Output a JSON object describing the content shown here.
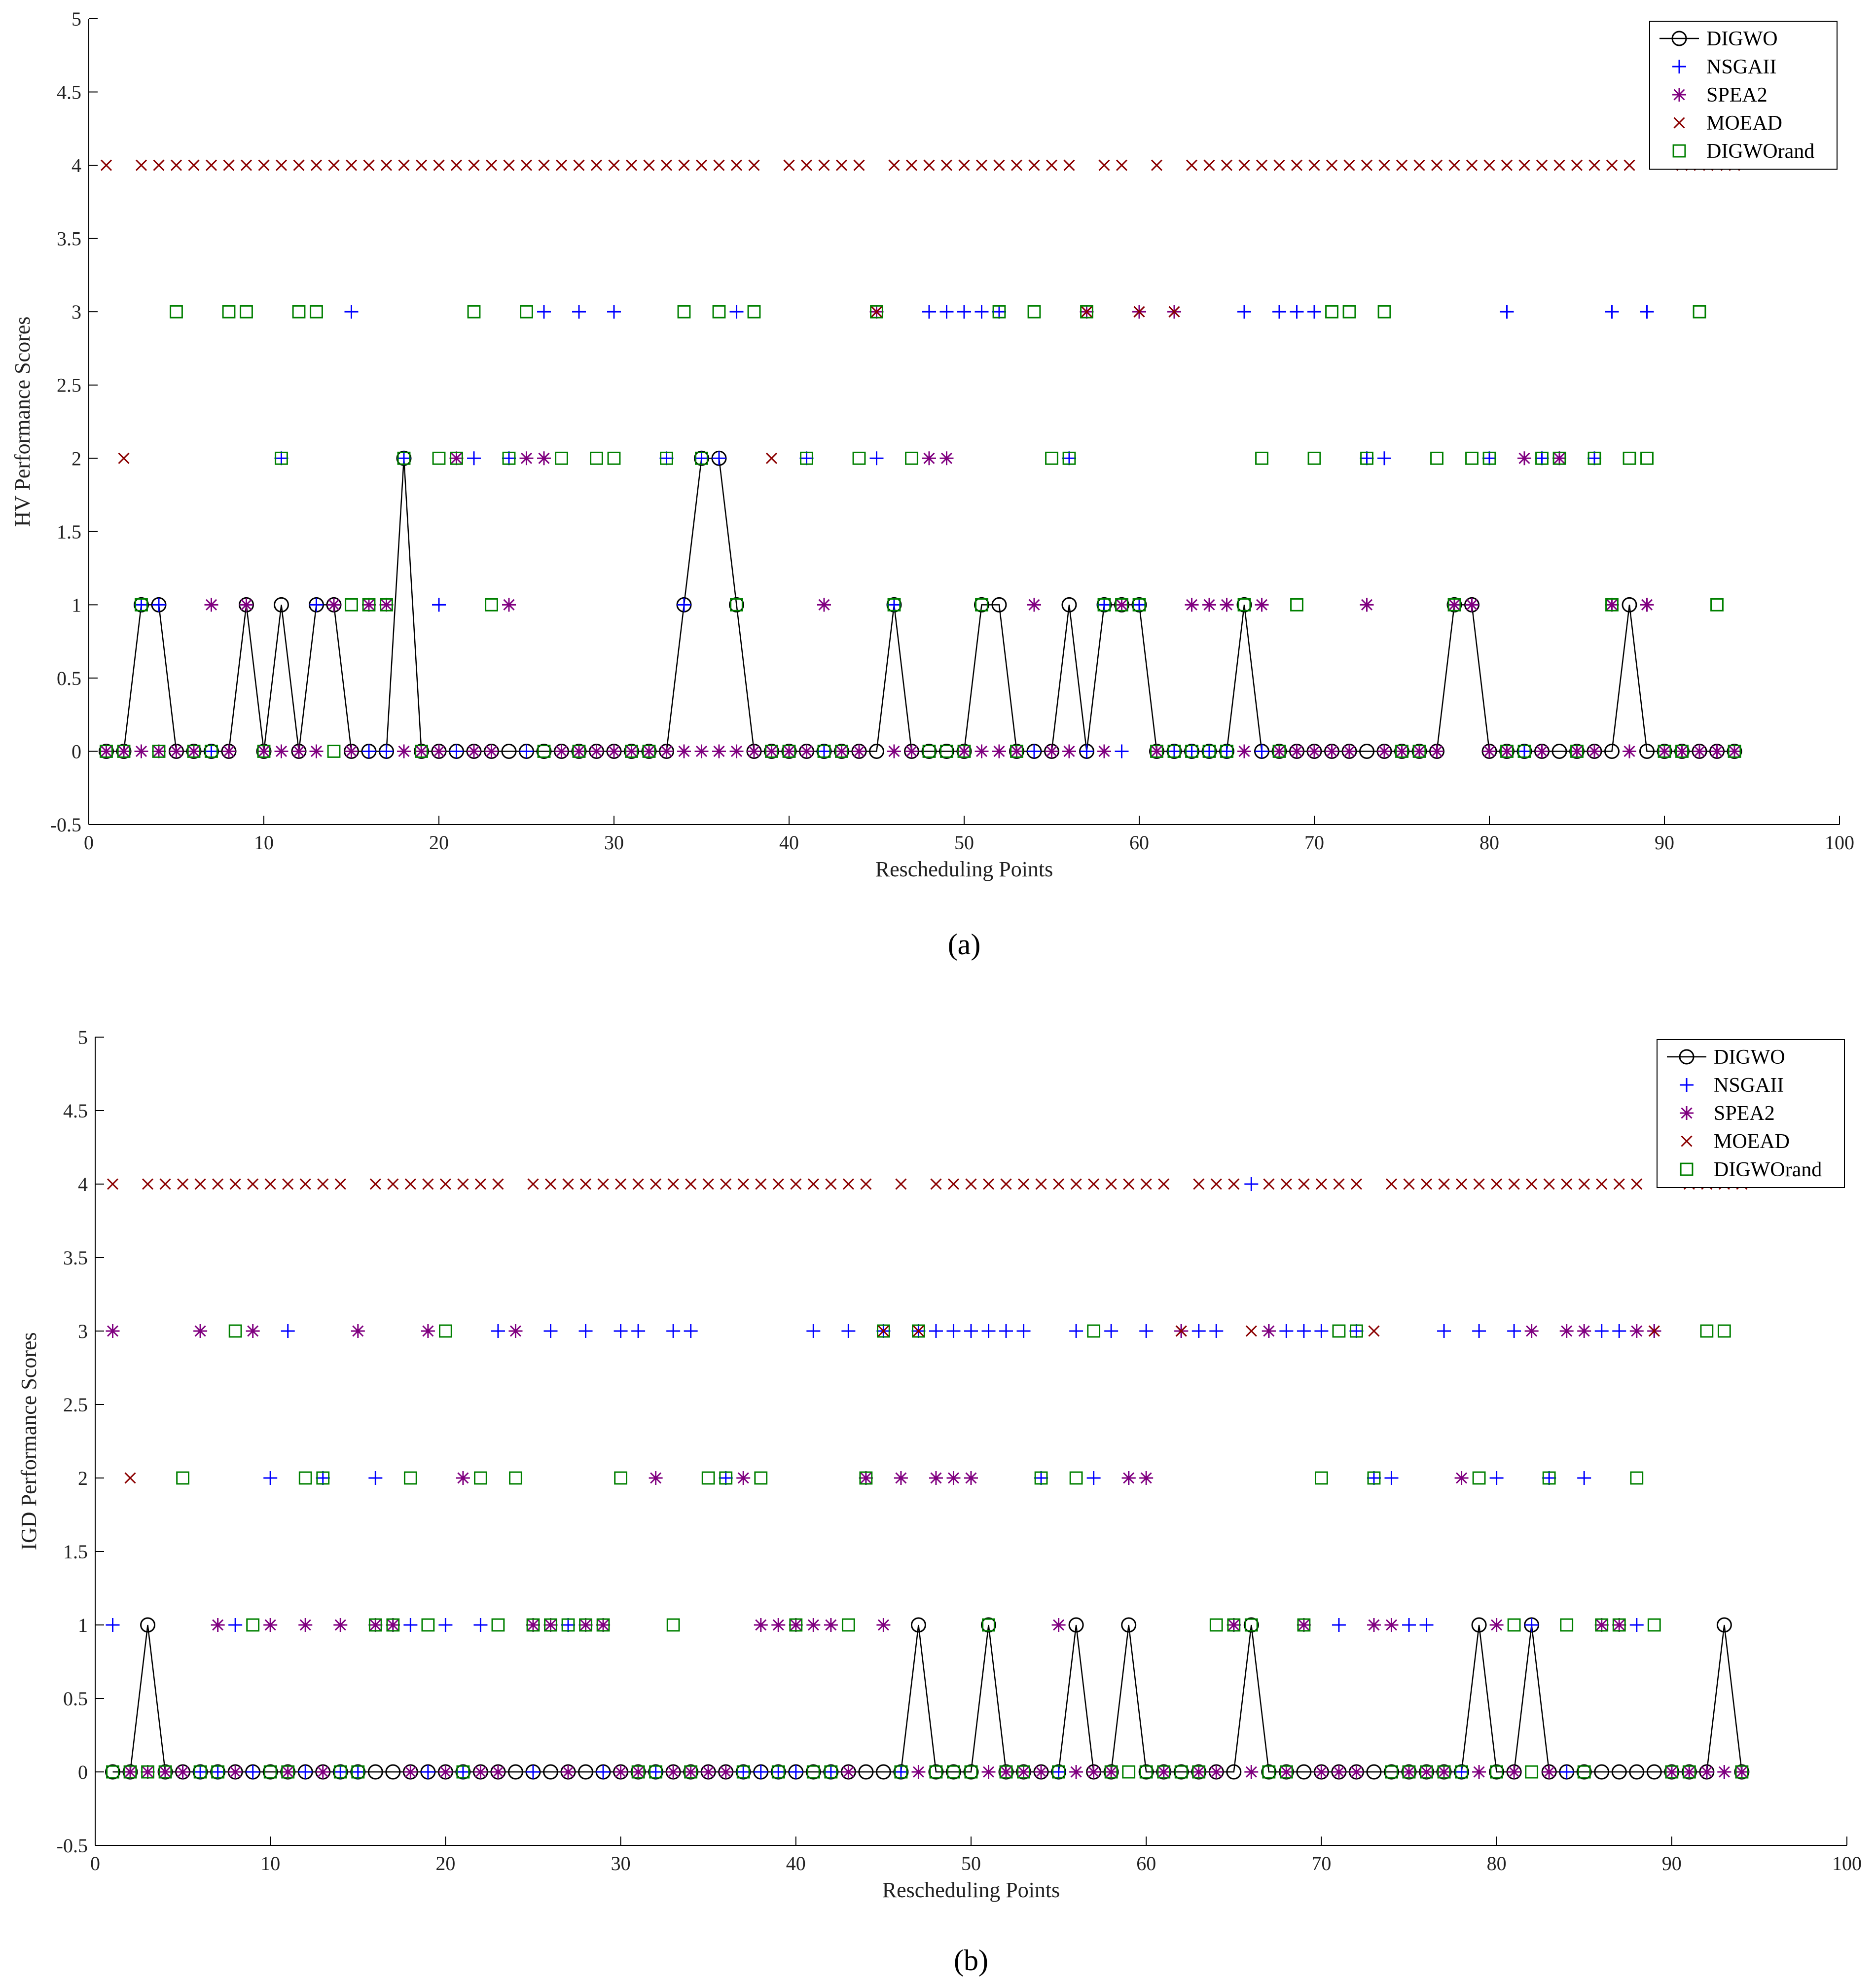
{
  "chart_data": [
    {
      "type": "line",
      "panel_label": "(a)",
      "ylabel": "HV Performance Scores",
      "xlabel": "Rescheduling Points",
      "xlim": [
        0,
        100
      ],
      "ylim": [
        -0.5,
        5
      ],
      "xticks": [
        0,
        10,
        20,
        30,
        40,
        50,
        60,
        70,
        80,
        90,
        100
      ],
      "yticks": [
        -0.5,
        0,
        0.5,
        1,
        1.5,
        2,
        2.5,
        3,
        3.5,
        4,
        4.5,
        5
      ],
      "legend": [
        "DIGWO",
        "NSGAII",
        "SPEA2",
        "MOEAD",
        "DIGWOrand"
      ],
      "legend_position": "top-right",
      "series": [
        {
          "name": "DIGWO",
          "marker": "circle",
          "color": "#000000",
          "line": true,
          "values": [
            0,
            0,
            1,
            1,
            0,
            0,
            0,
            0,
            1,
            0,
            1,
            0,
            1,
            1,
            0,
            0,
            0,
            2,
            0,
            0,
            0,
            0,
            0,
            0,
            0,
            0,
            0,
            0,
            0,
            0,
            0,
            0,
            0,
            1,
            2,
            2,
            1,
            0,
            0,
            0,
            0,
            0,
            0,
            0,
            0,
            1,
            0,
            0,
            0,
            0,
            1,
            1,
            0,
            0,
            0,
            1,
            0,
            1,
            1,
            1,
            0,
            0,
            0,
            0,
            0,
            1,
            0,
            0,
            0,
            0,
            0,
            0,
            0,
            0,
            0,
            0,
            0,
            1,
            1,
            0,
            0,
            0,
            0,
            0,
            0,
            0,
            0,
            1,
            0,
            0,
            0,
            0,
            0,
            0
          ]
        },
        {
          "name": "NSGAII",
          "marker": "plus",
          "color": "#0000ff",
          "line": false,
          "values": [
            0,
            0,
            1,
            1,
            0,
            0,
            0,
            0,
            1,
            0,
            2,
            0,
            1,
            1,
            3,
            0,
            0,
            2,
            0,
            1,
            0,
            2,
            0,
            2,
            0,
            3,
            0,
            3,
            0,
            3,
            0,
            0,
            2,
            1,
            2,
            2,
            3,
            0,
            0,
            0,
            2,
            0,
            0,
            0,
            2,
            1,
            0,
            3,
            3,
            3,
            3,
            3,
            0,
            0,
            0,
            2,
            0,
            1,
            0,
            1,
            0,
            0,
            0,
            0,
            0,
            3,
            0,
            3,
            3,
            3,
            0,
            0,
            2,
            2,
            0,
            0,
            0,
            1,
            1,
            2,
            3,
            0,
            2,
            2,
            0,
            2,
            3,
            0,
            3,
            0,
            0,
            0,
            0,
            0
          ]
        },
        {
          "name": "SPEA2",
          "marker": "star",
          "color": "#800080",
          "line": false,
          "values": [
            0,
            0,
            0,
            0,
            0,
            0,
            1,
            0,
            1,
            0,
            0,
            0,
            0,
            1,
            0,
            1,
            1,
            0,
            0,
            0,
            2,
            0,
            0,
            1,
            2,
            2,
            0,
            0,
            0,
            0,
            0,
            0,
            0,
            0,
            0,
            0,
            0,
            0,
            0,
            0,
            0,
            1,
            0,
            0,
            3,
            0,
            0,
            2,
            2,
            0,
            0,
            0,
            0,
            1,
            0,
            0,
            3,
            0,
            1,
            3,
            0,
            3,
            1,
            1,
            1,
            0,
            1,
            0,
            0,
            0,
            0,
            0,
            1,
            0,
            0,
            0,
            0,
            1,
            1,
            0,
            0,
            2,
            0,
            2,
            0,
            0,
            1,
            0,
            1,
            0,
            0,
            0,
            0,
            0
          ]
        },
        {
          "name": "MOEAD",
          "marker": "x",
          "color": "#8b0000",
          "line": false,
          "values": [
            4,
            2,
            4,
            4,
            4,
            4,
            4,
            4,
            4,
            4,
            4,
            4,
            4,
            4,
            4,
            4,
            4,
            4,
            4,
            4,
            4,
            4,
            4,
            4,
            4,
            4,
            4,
            4,
            4,
            4,
            4,
            4,
            4,
            4,
            4,
            4,
            4,
            4,
            2,
            4,
            4,
            4,
            4,
            4,
            3,
            4,
            4,
            4,
            4,
            4,
            4,
            4,
            4,
            4,
            4,
            4,
            3,
            4,
            4,
            3,
            4,
            3,
            4,
            4,
            4,
            4,
            4,
            4,
            4,
            4,
            4,
            4,
            4,
            4,
            4,
            4,
            4,
            4,
            4,
            4,
            4,
            4,
            4,
            4,
            4,
            4,
            4,
            4,
            null,
            null,
            4,
            4,
            4,
            4
          ]
        },
        {
          "name": "DIGWOrand",
          "marker": "square",
          "color": "#008000",
          "line": false,
          "values": [
            0,
            0,
            1,
            0,
            3,
            0,
            0,
            3,
            3,
            0,
            2,
            3,
            3,
            0,
            1,
            1,
            1,
            2,
            0,
            2,
            2,
            3,
            1,
            2,
            3,
            0,
            2,
            0,
            2,
            2,
            0,
            0,
            2,
            3,
            2,
            3,
            1,
            3,
            0,
            0,
            2,
            0,
            0,
            2,
            3,
            1,
            2,
            0,
            0,
            0,
            1,
            3,
            0,
            3,
            2,
            2,
            3,
            1,
            1,
            1,
            0,
            0,
            0,
            0,
            0,
            1,
            2,
            0,
            1,
            2,
            3,
            3,
            2,
            3,
            0,
            0,
            2,
            1,
            2,
            2,
            0,
            0,
            2,
            2,
            0,
            2,
            1,
            2,
            2,
            0,
            0,
            3,
            1,
            0
          ]
        }
      ]
    },
    {
      "type": "line",
      "panel_label": "(b)",
      "ylabel": "IGD Performance Scores",
      "xlabel": "Rescheduling Points",
      "xlim": [
        0,
        100
      ],
      "ylim": [
        -0.5,
        5
      ],
      "xticks": [
        0,
        10,
        20,
        30,
        40,
        50,
        60,
        70,
        80,
        90,
        100
      ],
      "yticks": [
        -0.5,
        0,
        0.5,
        1,
        1.5,
        2,
        2.5,
        3,
        3.5,
        4,
        4.5,
        5
      ],
      "legend": [
        "DIGWO",
        "NSGAII",
        "SPEA2",
        "MOEAD",
        "DIGWOrand"
      ],
      "legend_position": "top-right",
      "series": [
        {
          "name": "DIGWO",
          "marker": "circle",
          "color": "#000000",
          "line": true,
          "values": [
            0,
            0,
            1,
            0,
            0,
            0,
            0,
            0,
            0,
            0,
            0,
            0,
            0,
            0,
            0,
            0,
            0,
            0,
            0,
            0,
            0,
            0,
            0,
            0,
            0,
            0,
            0,
            0,
            0,
            0,
            0,
            0,
            0,
            0,
            0,
            0,
            0,
            0,
            0,
            0,
            0,
            0,
            0,
            0,
            0,
            0,
            1,
            0,
            0,
            0,
            1,
            0,
            0,
            0,
            0,
            1,
            0,
            0,
            1,
            0,
            0,
            0,
            0,
            0,
            0,
            1,
            0,
            0,
            0,
            0,
            0,
            0,
            0,
            0,
            0,
            0,
            0,
            0,
            1,
            0,
            0,
            1,
            0,
            0,
            0,
            0,
            0,
            0,
            0,
            0,
            0,
            0,
            1,
            0
          ]
        },
        {
          "name": "NSGAII",
          "marker": "plus",
          "color": "#0000ff",
          "line": false,
          "values": [
            1,
            0,
            0,
            0,
            0,
            0,
            0,
            1,
            0,
            2,
            3,
            0,
            2,
            0,
            0,
            2,
            1,
            1,
            0,
            1,
            0,
            1,
            3,
            3,
            0,
            3,
            1,
            3,
            0,
            3,
            3,
            0,
            3,
            3,
            0,
            2,
            0,
            0,
            0,
            0,
            3,
            0,
            3,
            2,
            3,
            0,
            3,
            3,
            3,
            3,
            3,
            3,
            3,
            2,
            0,
            3,
            2,
            3,
            2,
            3,
            0,
            3,
            3,
            3,
            1,
            4,
            3,
            3,
            3,
            3,
            1,
            3,
            2,
            2,
            1,
            1,
            3,
            0,
            3,
            2,
            3,
            1,
            2,
            0,
            2,
            3,
            3,
            1,
            3,
            0,
            0,
            0,
            0,
            0
          ]
        },
        {
          "name": "SPEA2",
          "marker": "star",
          "color": "#800080",
          "line": false,
          "values": [
            3,
            0,
            0,
            0,
            0,
            3,
            1,
            0,
            3,
            1,
            0,
            1,
            0,
            1,
            3,
            1,
            1,
            0,
            3,
            0,
            2,
            0,
            0,
            3,
            1,
            1,
            0,
            1,
            1,
            0,
            0,
            2,
            0,
            0,
            0,
            0,
            2,
            1,
            1,
            1,
            1,
            1,
            0,
            2,
            1,
            2,
            0,
            2,
            2,
            2,
            0,
            0,
            0,
            0,
            1,
            0,
            0,
            0,
            2,
            2,
            0,
            3,
            0,
            0,
            1,
            0,
            3,
            0,
            1,
            0,
            0,
            0,
            1,
            1,
            0,
            0,
            0,
            2,
            0,
            1,
            0,
            3,
            0,
            3,
            3,
            1,
            1,
            3,
            3,
            0,
            0,
            0,
            0,
            0
          ]
        },
        {
          "name": "MOEAD",
          "marker": "x",
          "color": "#8b0000",
          "line": false,
          "values": [
            4,
            2,
            4,
            4,
            4,
            4,
            4,
            4,
            4,
            4,
            4,
            4,
            4,
            4,
            null,
            4,
            4,
            4,
            4,
            4,
            4,
            4,
            4,
            null,
            4,
            4,
            4,
            4,
            4,
            4,
            4,
            4,
            4,
            4,
            4,
            4,
            4,
            4,
            4,
            4,
            4,
            4,
            4,
            4,
            3,
            4,
            3,
            4,
            4,
            4,
            4,
            4,
            4,
            4,
            4,
            4,
            4,
            4,
            4,
            4,
            4,
            3,
            4,
            4,
            4,
            3,
            4,
            4,
            4,
            4,
            4,
            4,
            3,
            4,
            4,
            4,
            4,
            4,
            4,
            4,
            4,
            4,
            4,
            4,
            4,
            4,
            4,
            4,
            3,
            null,
            4,
            4,
            4,
            4
          ]
        },
        {
          "name": "DIGWOrand",
          "marker": "square",
          "color": "#008000",
          "line": false,
          "values": [
            0,
            0,
            0,
            0,
            2,
            0,
            0,
            3,
            1,
            0,
            0,
            2,
            2,
            0,
            0,
            1,
            1,
            2,
            1,
            3,
            0,
            2,
            1,
            2,
            1,
            1,
            1,
            1,
            1,
            2,
            0,
            0,
            1,
            0,
            2,
            2,
            0,
            2,
            0,
            1,
            0,
            0,
            1,
            2,
            3,
            0,
            3,
            0,
            0,
            0,
            1,
            0,
            0,
            2,
            0,
            2,
            3,
            0,
            0,
            0,
            0,
            0,
            0,
            1,
            1,
            1,
            0,
            0,
            1,
            2,
            3,
            3,
            2,
            0,
            0,
            0,
            0,
            0,
            2,
            0,
            1,
            0,
            2,
            1,
            0,
            1,
            1,
            2,
            1,
            0,
            0,
            3,
            3,
            0
          ]
        }
      ]
    }
  ]
}
